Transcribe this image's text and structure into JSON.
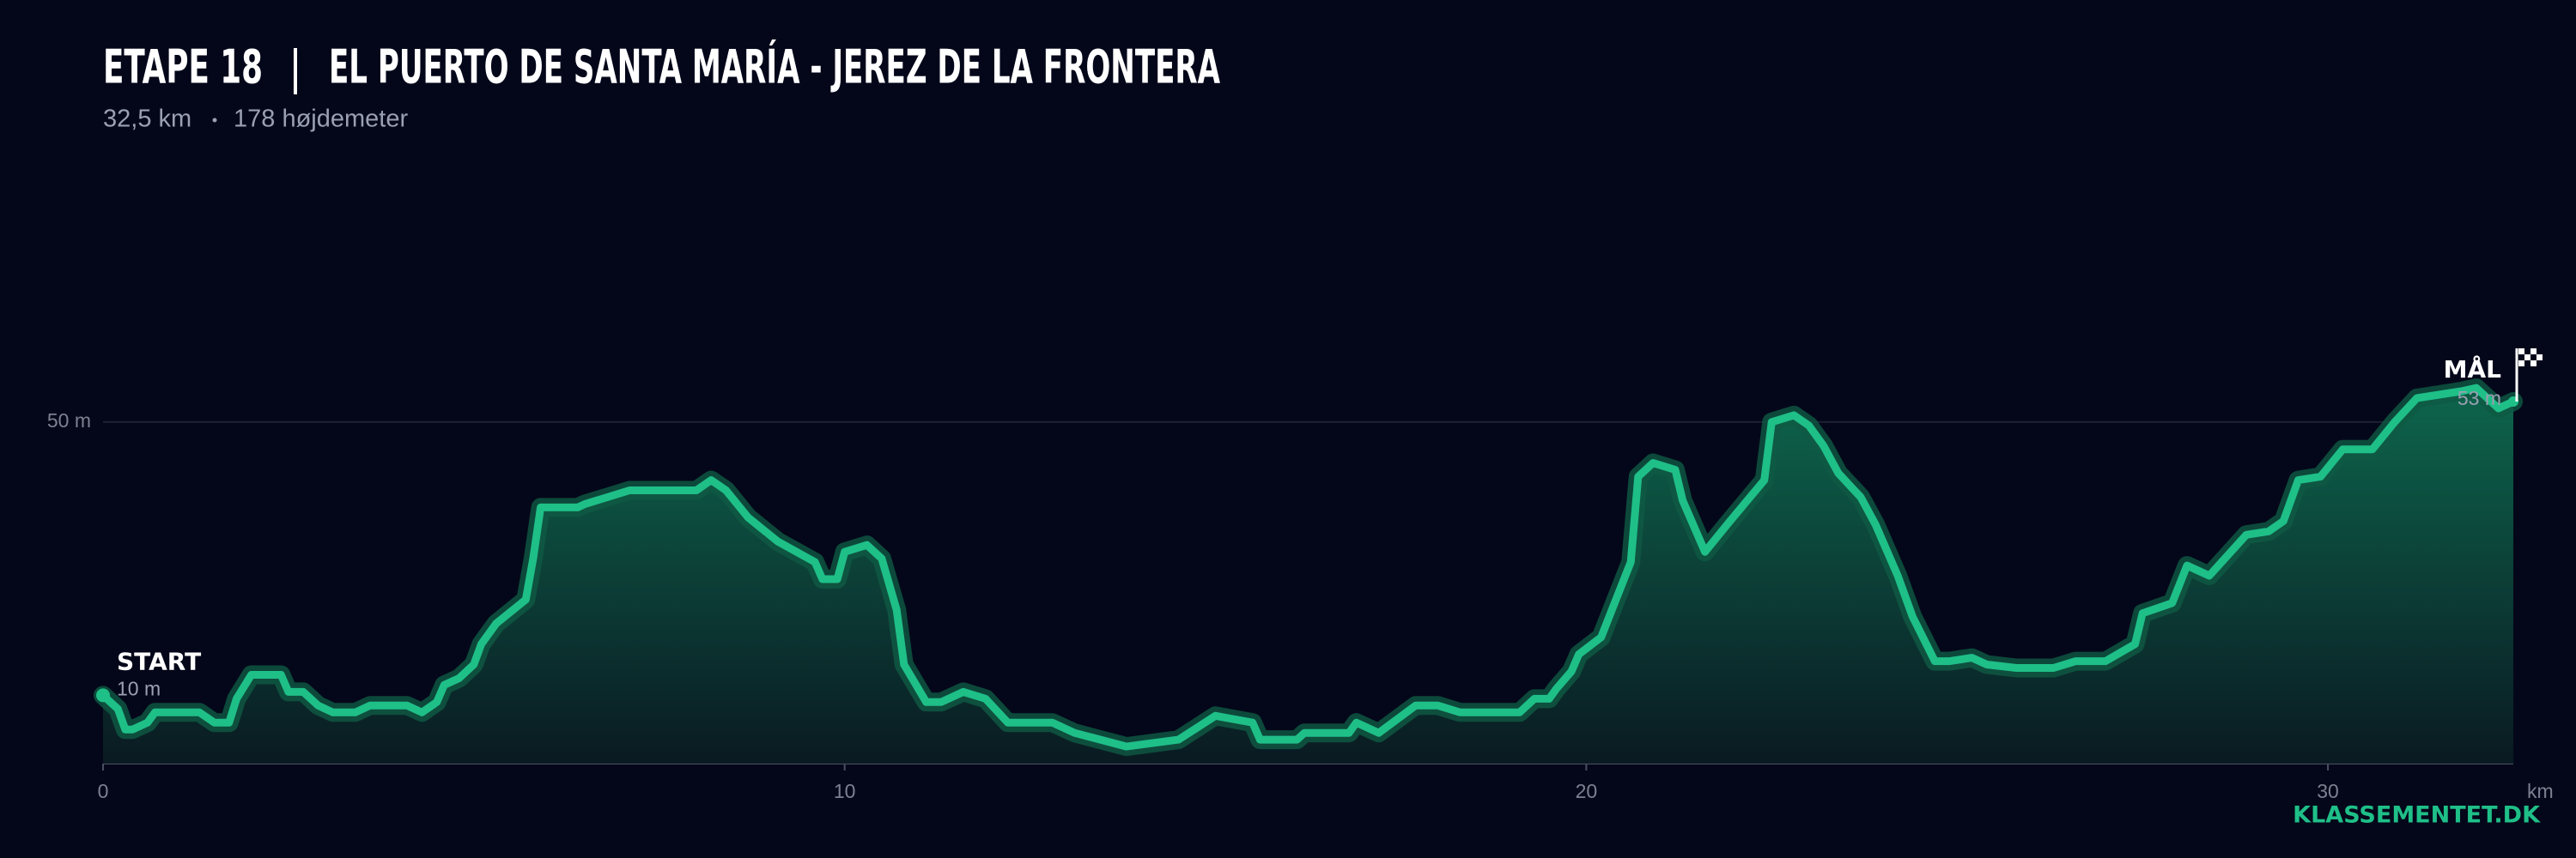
{
  "chart_data": {
    "type": "area",
    "stage": "ETAPE 18",
    "title": "EL PUERTO DE SANTA MARÍA - JEREZ DE LA FRONTERA",
    "subtitle_parts": [
      "32,5 km",
      "178 højdemeter"
    ],
    "x": [
      0,
      0.2,
      0.3,
      0.4,
      0.6,
      0.7,
      1.3,
      1.5,
      1.7,
      1.8,
      2.0,
      2.4,
      2.5,
      2.7,
      2.9,
      3.1,
      3.4,
      3.6,
      4.1,
      4.3,
      4.5,
      4.6,
      4.8,
      5.0,
      5.1,
      5.3,
      5.7,
      5.8,
      5.9,
      6.1,
      6.4,
      6.5,
      6.8,
      7.1,
      8.0,
      8.2,
      8.4,
      8.7,
      9.1,
      9.6,
      9.7,
      9.9,
      10.0,
      10.3,
      10.5,
      10.7,
      10.8,
      11.1,
      11.3,
      11.6,
      11.9,
      12.2,
      12.8,
      13.1,
      13.8,
      14.5,
      15.0,
      15.5,
      15.6,
      16.1,
      16.2,
      16.8,
      16.9,
      17.2,
      17.7,
      18.0,
      18.3,
      19.1,
      19.3,
      19.5,
      19.6,
      19.8,
      19.9,
      20.2,
      20.4,
      20.6,
      20.7,
      20.9,
      21.2,
      21.3,
      21.6,
      21.9,
      22.4,
      22.5,
      22.8,
      23.0,
      23.2,
      23.4,
      23.7,
      23.9,
      24.2,
      24.4,
      24.7,
      24.9,
      25.2,
      25.4,
      25.8,
      26.3,
      26.6,
      27.0,
      27.4,
      27.5,
      27.9,
      28.1,
      28.4,
      28.9,
      29.2,
      29.4,
      29.6,
      29.9,
      30.2,
      30.6,
      30.9,
      31.2,
      31.8,
      32.0,
      32.3,
      32.5
    ],
    "values": [
      10,
      8,
      5,
      5,
      6,
      7.5,
      7.5,
      6,
      6,
      9.5,
      13,
      13,
      10.5,
      10.5,
      8.5,
      7.5,
      7.5,
      8.5,
      8.5,
      7.5,
      9,
      11.5,
      12.5,
      14.5,
      17.5,
      20.5,
      24,
      30,
      37.5,
      37.5,
      37.5,
      38,
      39,
      40,
      40,
      41.5,
      40,
      36,
      32.5,
      29.5,
      27,
      27,
      31,
      32,
      30,
      22.5,
      14.5,
      9,
      9,
      10.5,
      9.5,
      6,
      6,
      4.5,
      2.5,
      3.5,
      7,
      6,
      3.5,
      3.5,
      4.5,
      4.5,
      6,
      4.5,
      8.5,
      8.5,
      7.5,
      7.5,
      9.5,
      9.5,
      11,
      13.5,
      16,
      18.5,
      24,
      29.5,
      42,
      44,
      43,
      38.5,
      31,
      35,
      41.5,
      50,
      51,
      49.5,
      46.5,
      42.5,
      39,
      35,
      27.5,
      21.5,
      15,
      15,
      15.5,
      14.5,
      14,
      14,
      15,
      15,
      17.5,
      22,
      23.5,
      29,
      27.5,
      33.5,
      34,
      35.5,
      41.5,
      42,
      46,
      46,
      50,
      53.5,
      54.5,
      55,
      52,
      53
    ],
    "color": "#1fbf88",
    "xlim": [
      0,
      32.5
    ],
    "xticks": [
      0,
      10,
      20,
      30
    ],
    "x_unit": "km",
    "ylim": [
      0,
      80
    ],
    "yticks": [
      {
        "value": 50,
        "label": "50 m"
      }
    ],
    "grid": true,
    "start_label": "START",
    "start_value_label": "10 m",
    "finish_label": "MÅL",
    "finish_value_label": "53 m",
    "source": "KLASSEMENTET.DK"
  }
}
